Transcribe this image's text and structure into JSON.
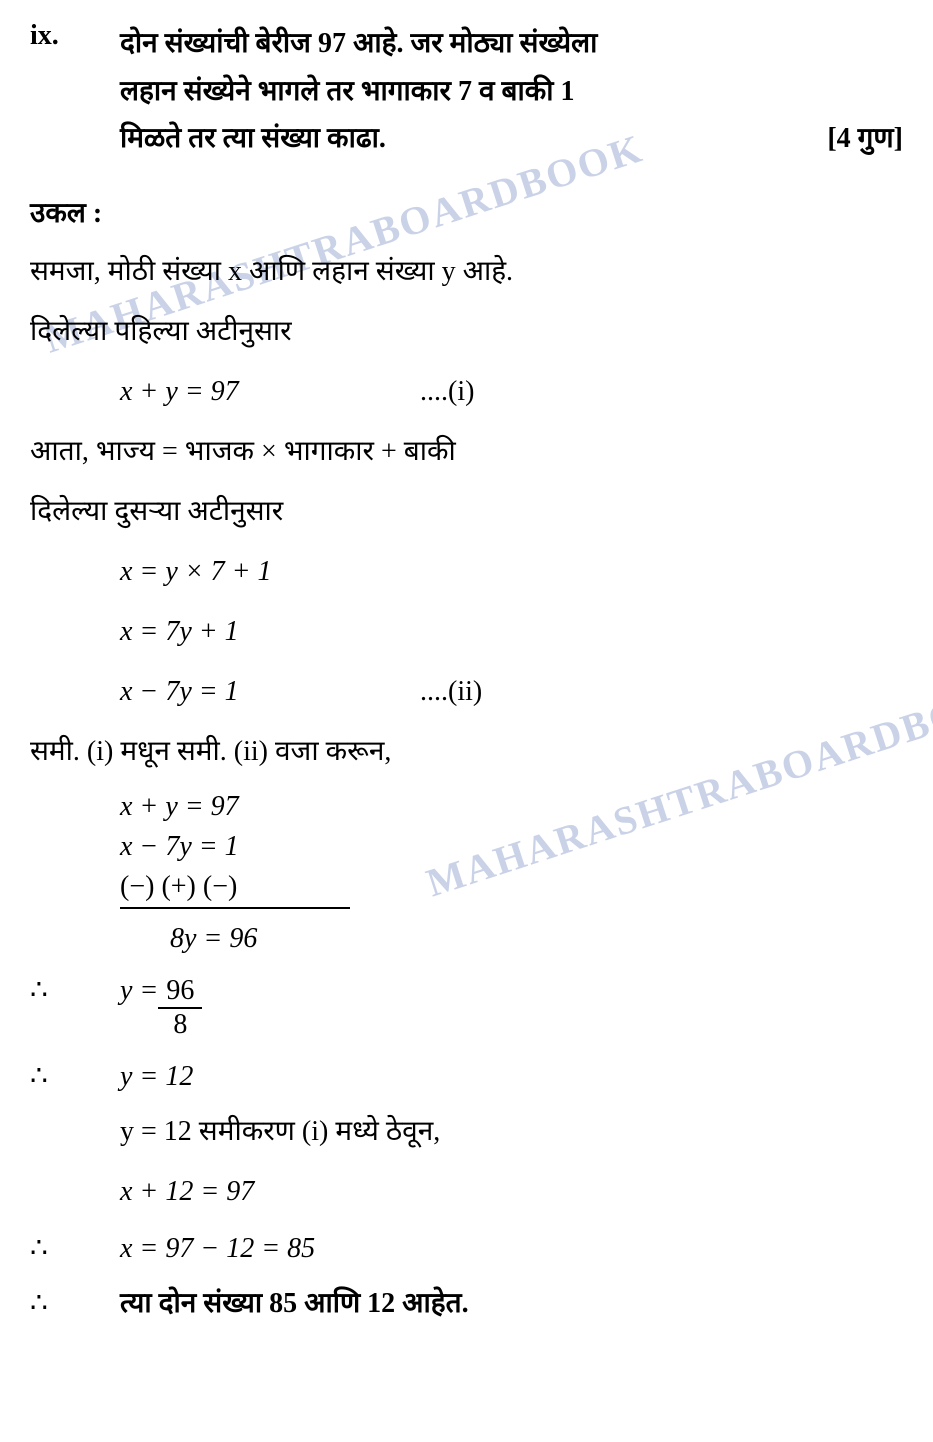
{
  "watermarks": {
    "text1": "MAHARASHTRABOARDBOOK",
    "text2": "MAHARASHTRABOARDBOOKS"
  },
  "question": {
    "number": "ix.",
    "text_line1": "दोन संख्यांची बेरीज 97 आहे. जर मोठ्या संख्येला",
    "text_line2": "लहान संख्येने भागले तर भागाकार 7 व बाकी 1",
    "text_line3": "मिळते तर त्या संख्या काढा.",
    "marks": "[4 गुण]"
  },
  "solution": {
    "label": "उकल :",
    "line1": "समजा, मोठी संख्या x आणि लहान संख्या y आहे.",
    "line2": "दिलेल्या पहिल्या अटीनुसार",
    "eq1": "x + y = 97",
    "eq1_num": "....(i)",
    "line3": "आता, भाज्य = भाजक × भागाकार + बाकी",
    "line4": "दिलेल्या दुसऱ्या अटीनुसार",
    "eq2a": "x = y × 7 + 1",
    "eq2b": "x = 7y + 1",
    "eq2c": "x − 7y = 1",
    "eq2_num": "....(ii)",
    "line5": "समी. (i) मधून समी. (ii) वजा करून,",
    "sub_eq1": "x  +   y = 97",
    "sub_eq2": "x  −  7y = 1",
    "sub_signs": "(−)   (+)   (−)",
    "sub_result": "8y = 96",
    "therefore": "∴",
    "frac_eq": "y = ",
    "frac_num": "96",
    "frac_den": "8",
    "y_result": "y = 12",
    "substitute": "y = 12 समीकरण (i) मध्ये ठेवून,",
    "x_eq": "x + 12 = 97",
    "x_result": "x = 97 − 12 = 85",
    "final": "त्या दोन संख्या 85 आणि 12 आहेत."
  },
  "colors": {
    "text": "#000000",
    "background": "#ffffff",
    "watermark": "#a8b5d8"
  },
  "fonts": {
    "body_size": 28,
    "watermark_size": 40
  }
}
